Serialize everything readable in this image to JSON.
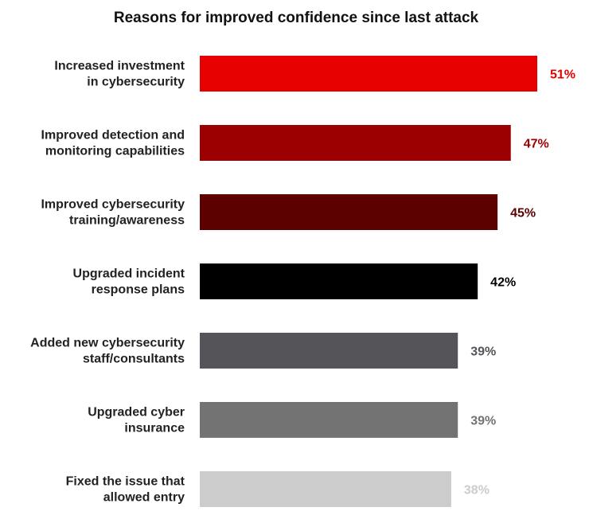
{
  "chart_data": {
    "type": "bar",
    "orientation": "horizontal",
    "title": "Reasons for improved confidence since last attack",
    "categories": [
      [
        "Increased investment",
        "in cybersecurity"
      ],
      [
        "Improved detection and",
        "monitoring capabilities"
      ],
      [
        "Improved cybersecurity",
        "training/awareness"
      ],
      [
        "Upgraded incident",
        "response plans"
      ],
      [
        "Added new cybersecurity",
        "staff/consultants"
      ],
      [
        "Upgraded cyber",
        "insurance"
      ],
      [
        "Fixed the issue that",
        "allowed entry"
      ]
    ],
    "values": [
      51,
      47,
      45,
      42,
      39,
      39,
      38
    ],
    "value_labels": [
      "51%",
      "47%",
      "45%",
      "42%",
      "39%",
      "39%",
      "38%"
    ],
    "bar_colors": [
      "#e60000",
      "#9c0000",
      "#5c0000",
      "#000000",
      "#545459",
      "#737373",
      "#cccccc"
    ],
    "label_colors": [
      "#e60000",
      "#9c0000",
      "#5c0000",
      "#000000",
      "#545459",
      "#737373",
      "#cccccc"
    ],
    "unit": "%",
    "grid": false,
    "legend": "none"
  }
}
